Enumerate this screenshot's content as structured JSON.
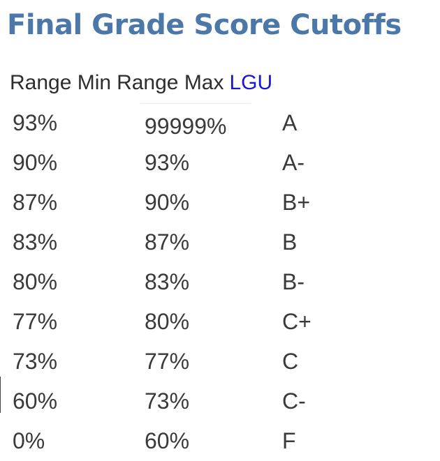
{
  "title": "Final Grade Score Cutoffs",
  "table": {
    "headers": {
      "min": "Range Min",
      "max": "Range Max",
      "lgu": "LGU"
    },
    "rows": [
      {
        "min": "93%",
        "max": "99999%",
        "lgu": "A"
      },
      {
        "min": "90%",
        "max": "93%",
        "lgu": "A-"
      },
      {
        "min": "87%",
        "max": "90%",
        "lgu": "B+"
      },
      {
        "min": "83%",
        "max": "87%",
        "lgu": "B"
      },
      {
        "min": "80%",
        "max": "83%",
        "lgu": "B-"
      },
      {
        "min": "77%",
        "max": "80%",
        "lgu": "C+"
      },
      {
        "min": "73%",
        "max": "77%",
        "lgu": "C"
      },
      {
        "min": "60%",
        "max": "73%",
        "lgu": "C-"
      },
      {
        "min": "0%",
        "max": "60%",
        "lgu": "F"
      }
    ]
  },
  "colors": {
    "title": "#4b77a9",
    "lgu_header": "#1d14d9",
    "text": "#3a3a3a"
  }
}
